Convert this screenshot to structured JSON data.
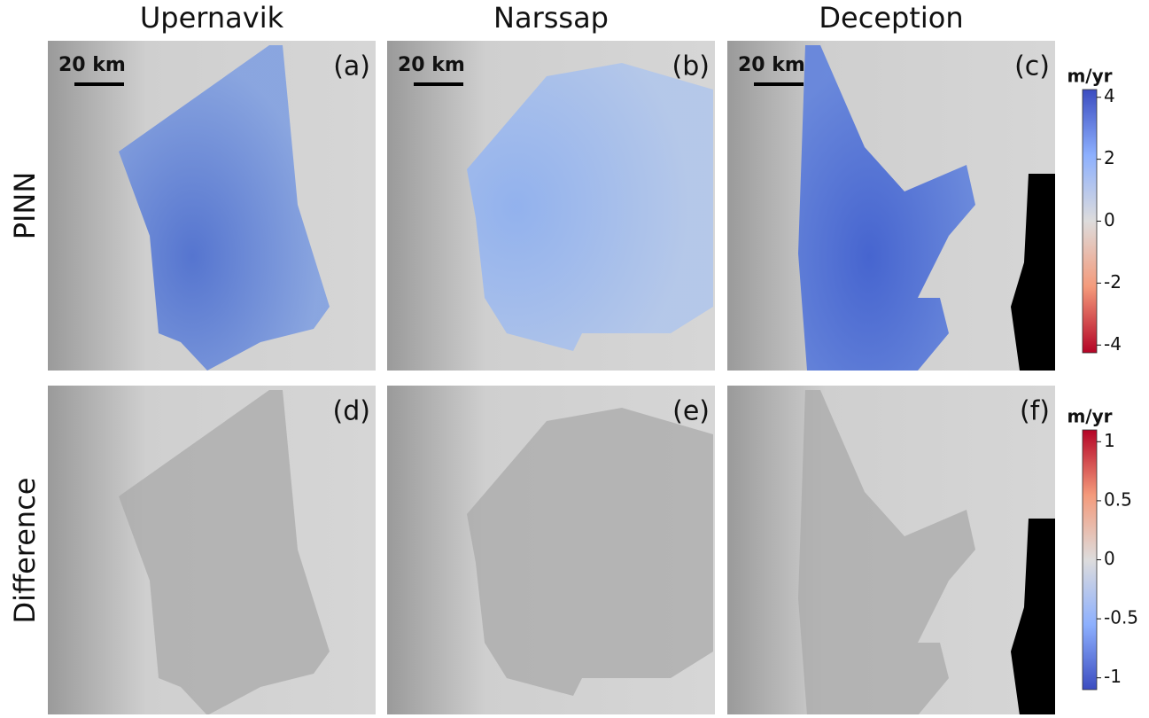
{
  "columns": [
    "Upernavik",
    "Narssap",
    "Deception"
  ],
  "rows": [
    "PINN",
    "Difference"
  ],
  "panels": [
    {
      "label": "(a)",
      "scale_bar": "20 km"
    },
    {
      "label": "(b)",
      "scale_bar": "20 km"
    },
    {
      "label": "(c)",
      "scale_bar": "20 km"
    },
    {
      "label": "(d)"
    },
    {
      "label": "(e)"
    },
    {
      "label": "(f)"
    }
  ],
  "colorbars": [
    {
      "unit": "m/yr",
      "lim": [
        -4.25,
        4.25
      ],
      "ticks": [
        4,
        2,
        0,
        -2,
        -4
      ]
    },
    {
      "unit": "m/yr",
      "lim": [
        -1.1,
        1.1
      ],
      "ticks": [
        1,
        0.5,
        0,
        -0.5,
        -1
      ]
    }
  ]
}
